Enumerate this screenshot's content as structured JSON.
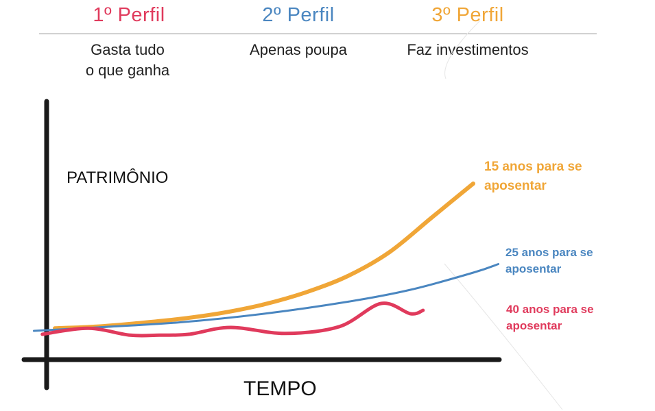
{
  "header": {
    "profiles": [
      {
        "title": "1º Perfil",
        "description_line1": "Gasta tudo",
        "description_line2": "o que ganha",
        "color": "#e03a5c"
      },
      {
        "title": "2º Perfil",
        "description_line1": "Apenas poupa",
        "description_line2": "",
        "color": "#4a86c0"
      },
      {
        "title": "3º Perfil",
        "description_line1": "Faz investimentos",
        "description_line2": "",
        "color": "#f0a637"
      }
    ]
  },
  "chart_data": {
    "type": "line",
    "xlabel": "TEMPO",
    "ylabel": "PATRIMÔNIO",
    "grid": false,
    "series": [
      {
        "key": "perfil3",
        "color": "#f0a637",
        "annotation_line1": "15 anos para se",
        "annotation_line2": "aposentar",
        "values": [
          [
            0.0,
            0.03
          ],
          [
            0.1,
            0.05
          ],
          [
            0.2,
            0.09
          ],
          [
            0.3,
            0.14
          ],
          [
            0.4,
            0.21
          ],
          [
            0.5,
            0.31
          ],
          [
            0.6,
            0.45
          ],
          [
            0.7,
            0.64
          ],
          [
            0.8,
            0.92
          ],
          [
            0.9,
            1.32
          ],
          [
            1.0,
            1.72
          ]
        ]
      },
      {
        "key": "perfil2",
        "color": "#4a86c0",
        "annotation_line1": "25 anos para se",
        "annotation_line2": "aposentar",
        "values": [
          [
            -0.05,
            0.0
          ],
          [
            0.1,
            0.04
          ],
          [
            0.3,
            0.1
          ],
          [
            0.5,
            0.2
          ],
          [
            0.7,
            0.34
          ],
          [
            0.85,
            0.48
          ],
          [
            1.0,
            0.68
          ],
          [
            1.06,
            0.78
          ]
        ]
      },
      {
        "key": "perfil1",
        "color": "#e03a5c",
        "annotation_line1": "40 anos para se",
        "annotation_line2": "aposentar",
        "values": [
          [
            -0.03,
            -0.04
          ],
          [
            0.08,
            0.03
          ],
          [
            0.18,
            -0.05
          ],
          [
            0.25,
            -0.05
          ],
          [
            0.32,
            -0.04
          ],
          [
            0.42,
            0.04
          ],
          [
            0.55,
            -0.03
          ],
          [
            0.68,
            0.05
          ],
          [
            0.78,
            0.32
          ],
          [
            0.85,
            0.2
          ],
          [
            0.88,
            0.24
          ]
        ]
      }
    ]
  }
}
